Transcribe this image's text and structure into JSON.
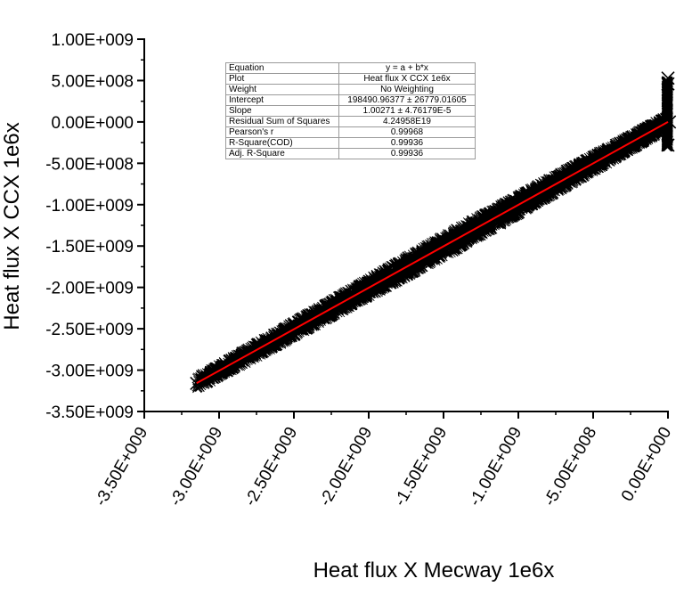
{
  "chart_data": {
    "type": "scatter",
    "xlabel": "Heat flux X Mecway 1e6x",
    "ylabel": "Heat flux X CCX 1e6x",
    "xlim": [
      -3500000000.0,
      0.0
    ],
    "ylim": [
      -3500000000.0,
      1000000000.0
    ],
    "x_ticks": [
      -3500000000.0,
      -3000000000.0,
      -2500000000.0,
      -2000000000.0,
      -1500000000.0,
      -1000000000.0,
      -500000000.0,
      0.0
    ],
    "x_tick_labels": [
      "-3.50E+009",
      "-3.00E+009",
      "-2.50E+009",
      "-2.00E+009",
      "-1.50E+009",
      "-1.00E+009",
      "-5.00E+008",
      "0.00E+000"
    ],
    "y_ticks": [
      1000000000.0,
      500000000.0,
      0.0,
      -500000000.0,
      -1000000000.0,
      -1500000000.0,
      -2000000000.0,
      -2500000000.0,
      -3000000000.0,
      -3500000000.0
    ],
    "y_tick_labels": [
      "1.00E+009",
      "5.00E+008",
      "0.00E+000",
      "-5.00E+008",
      "-1.00E+009",
      "-1.50E+009",
      "-2.00E+009",
      "-2.50E+009",
      "-3.00E+009",
      "-3.50E+009"
    ],
    "grid": false,
    "marker": "x",
    "series": [
      {
        "values_summary": "dense cloud of x markers along y ≈ x from about -3.15E+009 to 0; vertical spread near x = 0 from about -3.0E+008 to 5.0E+008",
        "color": "#000000"
      }
    ],
    "fit_line": {
      "color": "#ff0000",
      "x": [
        -3150000000.0,
        0.0
      ],
      "y": [
        -3157300000.0,
        198500.0
      ]
    },
    "fit_table": [
      {
        "key": "Equation",
        "value": "y = a + b*x"
      },
      {
        "key": "Plot",
        "value": "Heat flux X CCX 1e6x"
      },
      {
        "key": "Weight",
        "value": "No Weighting"
      },
      {
        "key": "Intercept",
        "value": "198490.96377 ± 26779.01605"
      },
      {
        "key": "Slope",
        "value": "1.00271 ± 4.76179E-5"
      },
      {
        "key": "Residual Sum of Squares",
        "value": "4.24958E19"
      },
      {
        "key": "Pearson's r",
        "value": "0.99968"
      },
      {
        "key": "R-Square(COD)",
        "value": "0.99936"
      },
      {
        "key": "Adj. R-Square",
        "value": "0.99936"
      }
    ]
  }
}
